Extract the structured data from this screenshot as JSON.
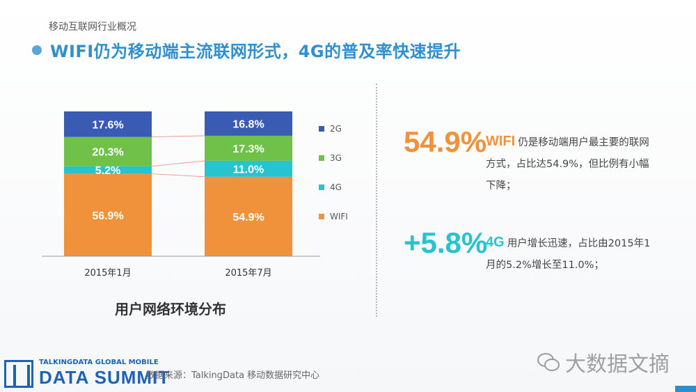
{
  "header": {
    "section": "移动互联网行业概况",
    "headline": "WIFI仍为移动端主流联网形式，4G的普及率快速提升"
  },
  "chart_data": {
    "type": "bar",
    "stacked": true,
    "categories": [
      "2015年1月",
      "2015年7月"
    ],
    "series": [
      {
        "name": "WIFI",
        "values": [
          56.9,
          54.9
        ],
        "labels": [
          "56.9%",
          "54.9%"
        ],
        "color": "#f0923b"
      },
      {
        "name": "4G",
        "values": [
          5.2,
          11.0
        ],
        "labels": [
          "5.2%",
          "11.0%"
        ],
        "color": "#27c3cf"
      },
      {
        "name": "3G",
        "values": [
          20.3,
          17.3
        ],
        "labels": [
          "20.3%",
          "17.3%"
        ],
        "color": "#6fc14a"
      },
      {
        "name": "2G",
        "values": [
          17.6,
          16.8
        ],
        "labels": [
          "17.6%",
          "16.8%"
        ],
        "color": "#3a5bb4"
      }
    ],
    "legend_order": [
      "2G",
      "3G",
      "4G",
      "WIFI"
    ],
    "legend_position": "right",
    "title": "用户网络环境分布",
    "ylim": [
      0,
      100
    ],
    "grid": false
  },
  "stats": [
    {
      "value": "54.9%",
      "key": "WIFI",
      "text": "仍是移动端用户最主要的联网方式，占比达54.9%，但比例有小幅下降；",
      "color": "#f0923b"
    },
    {
      "value": "+5.8%",
      "key": "4G",
      "text": "用户增长迅速，占比由2015年1月的5.2%增长至11.0%；",
      "color": "#27c3cf"
    }
  ],
  "footer": {
    "logo_sub": "TALKINGDATA GLOBAL MOBILE",
    "logo_main": "DATA SUMMIT",
    "source": "数据来源：TalkingData 移动数据研究中心",
    "watermark": "大数据文摘"
  }
}
